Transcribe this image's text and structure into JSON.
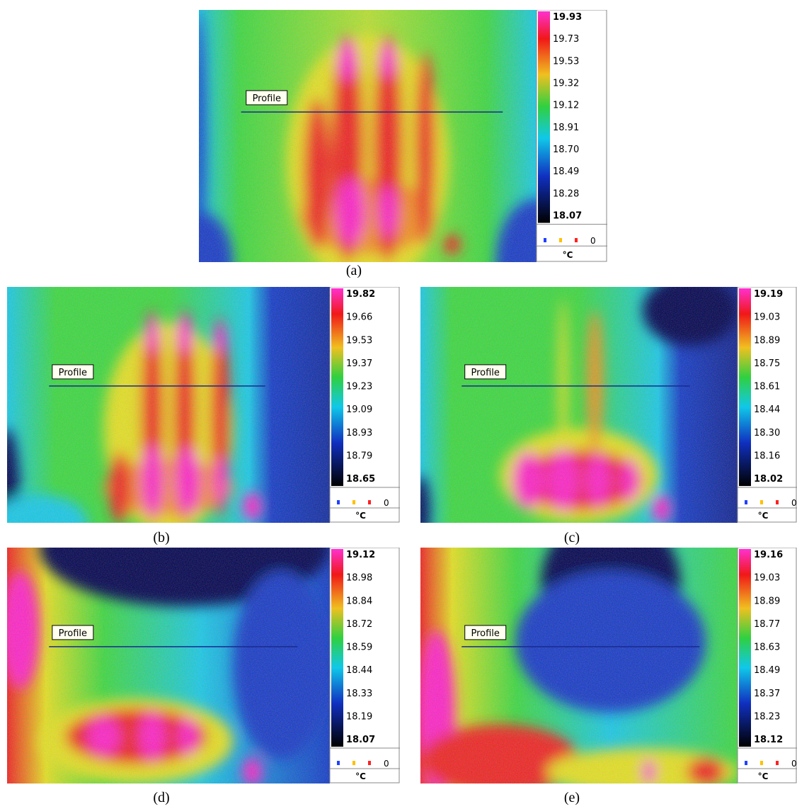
{
  "panels": [
    {
      "label": "(a)",
      "ticks": [
        "19.93",
        "19.73",
        "19.53",
        "19.32",
        "19.12",
        "18.91",
        "18.70",
        "18.49",
        "18.28",
        "18.07"
      ],
      "profile": "Profile",
      "legend_value": "0",
      "unit": "°C"
    },
    {
      "label": "(b)",
      "ticks": [
        "19.82",
        "19.66",
        "19.53",
        "19.37",
        "19.23",
        "19.09",
        "18.93",
        "18.79",
        "18.65"
      ],
      "profile": "Profile",
      "legend_value": "0",
      "unit": "°C"
    },
    {
      "label": "(c)",
      "ticks": [
        "19.19",
        "19.03",
        "18.89",
        "18.75",
        "18.61",
        "18.44",
        "18.30",
        "18.16",
        "18.02"
      ],
      "profile": "Profile",
      "legend_value": "0",
      "unit": "°C"
    },
    {
      "label": "(d)",
      "ticks": [
        "19.12",
        "18.98",
        "18.84",
        "18.72",
        "18.59",
        "18.44",
        "18.33",
        "18.19",
        "18.07"
      ],
      "profile": "Profile",
      "legend_value": "0",
      "unit": "°C"
    },
    {
      "label": "(e)",
      "ticks": [
        "19.16",
        "19.03",
        "18.89",
        "18.77",
        "18.63",
        "18.49",
        "18.37",
        "18.23",
        "18.12"
      ],
      "profile": "Profile",
      "legend_value": "0",
      "unit": "°C"
    }
  ]
}
